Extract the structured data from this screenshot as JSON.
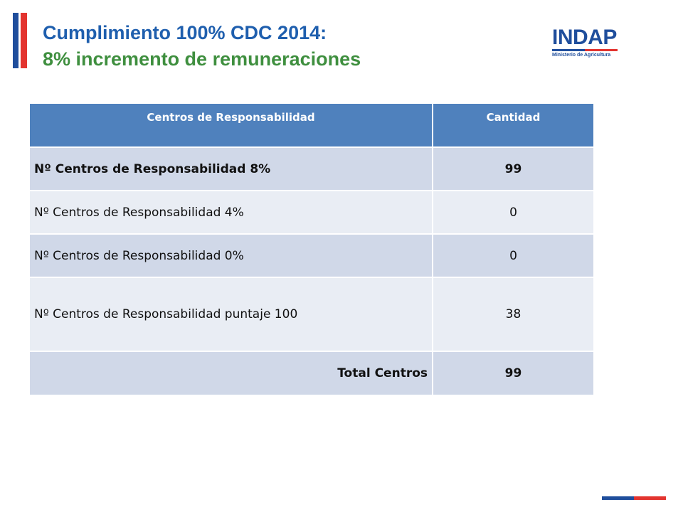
{
  "title": {
    "line1": "Cumplimiento 100% CDC  2014:",
    "line2": "8%  incremento de remuneraciones"
  },
  "logo": {
    "name": "INDAP",
    "subtitle": "Ministerio de Agricultura"
  },
  "table": {
    "headers": [
      "Centros de Responsabilidad",
      "Cantidad"
    ],
    "rows": [
      {
        "label": "Nº Centros de Responsabilidad 8%",
        "value": "99"
      },
      {
        "label": "Nº Centros de Responsabilidad 4%",
        "value": "0"
      },
      {
        "label": "Nº Centros de Responsabilidad 0%",
        "value": "0"
      },
      {
        "label": "Nº Centros de Responsabilidad puntaje 100",
        "value": "38"
      },
      {
        "label": "Total Centros",
        "value": "99"
      }
    ]
  },
  "colors": {
    "header_bg": "#4f81bd",
    "row_dark": "#d0d8e8",
    "row_light": "#e9edf4",
    "brand_blue": "#1f4e9c",
    "brand_red": "#e3342f",
    "title_blue": "#1f5fae",
    "title_green": "#3f8f3f"
  }
}
